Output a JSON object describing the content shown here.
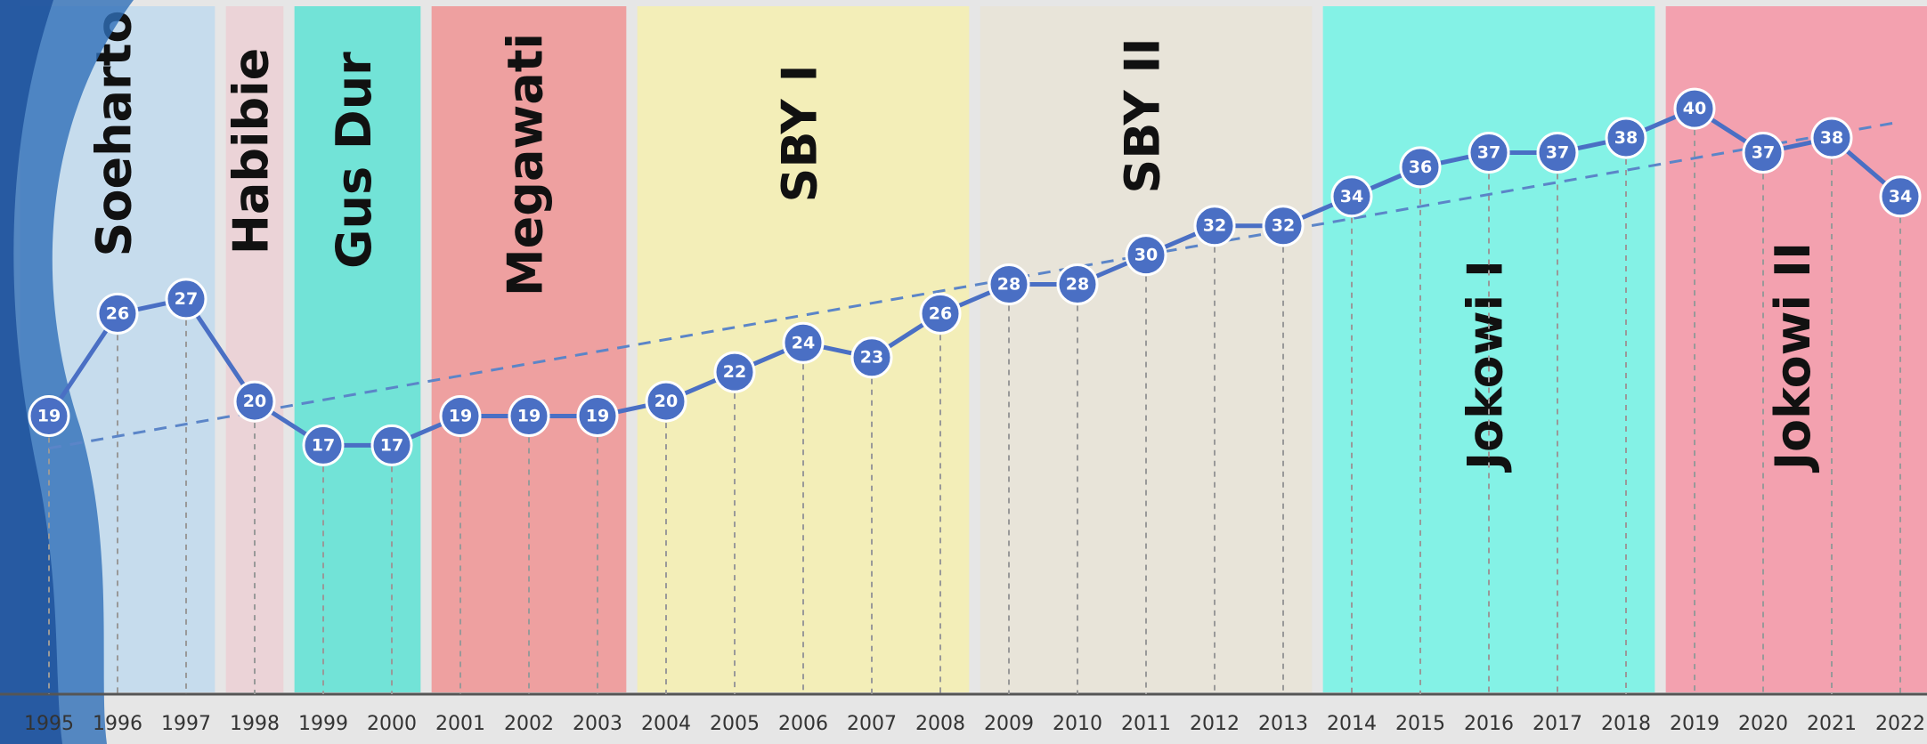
{
  "chart_data": {
    "type": "line",
    "categories": [
      "1995",
      "1996",
      "1997",
      "1998",
      "1999",
      "2000",
      "2001",
      "2002",
      "2003",
      "2004",
      "2005",
      "2006",
      "2007",
      "2008",
      "2009",
      "2010",
      "2011",
      "2012",
      "2013",
      "2014",
      "2015",
      "2016",
      "2017",
      "2018",
      "2019",
      "2020",
      "2021",
      "2022"
    ],
    "values": [
      19,
      26,
      27,
      20,
      17,
      17,
      19,
      19,
      19,
      20,
      22,
      24,
      23,
      26,
      28,
      28,
      30,
      32,
      32,
      34,
      36,
      37,
      37,
      38,
      40,
      37,
      38,
      34
    ],
    "color": "#4a6fc4",
    "ylim": [
      0,
      47
    ],
    "trend": [
      16.8,
      39.1
    ],
    "trend_color": "#5b85c8",
    "eras": [
      {
        "label": "Soeharto",
        "from": "1995",
        "to": "1997",
        "color": "#c6dced"
      },
      {
        "label": "Habibie",
        "from": "1998",
        "to": "1998",
        "color": "#ebd3d7"
      },
      {
        "label": "Gus Dur",
        "from": "1999",
        "to": "2000",
        "color": "#72e3d7"
      },
      {
        "label": "Megawati",
        "from": "2001",
        "to": "2003",
        "color": "#eea0a0"
      },
      {
        "label": "SBY I",
        "from": "2004",
        "to": "2008",
        "color": "#f3eeb8"
      },
      {
        "label": "SBY II",
        "from": "2009",
        "to": "2013",
        "color": "#e8e4d9"
      },
      {
        "label": "Jokowi I",
        "from": "2014",
        "to": "2018",
        "color": "#84f2e6"
      },
      {
        "label": "Jokowi II",
        "from": "2019",
        "to": "2022",
        "color": "#f3a1af"
      }
    ]
  }
}
